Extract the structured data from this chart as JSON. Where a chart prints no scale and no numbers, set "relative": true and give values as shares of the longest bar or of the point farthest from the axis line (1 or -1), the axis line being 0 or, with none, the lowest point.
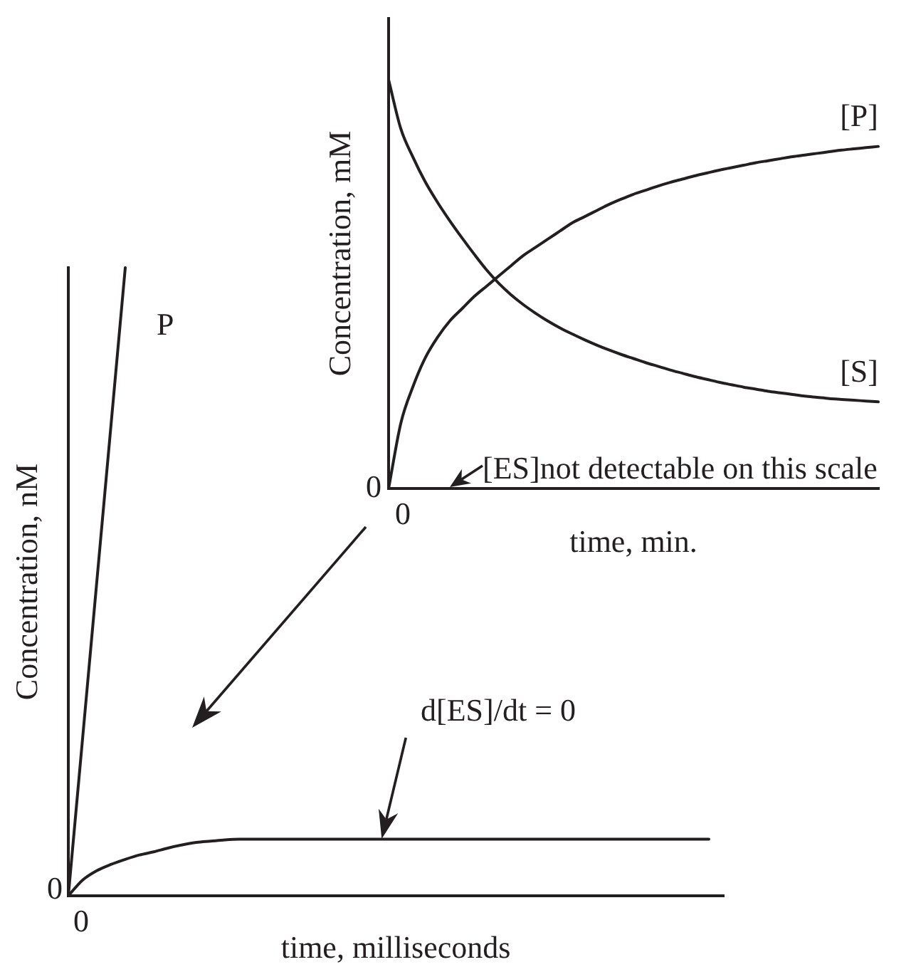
{
  "chart_data": [
    {
      "type": "line",
      "relative": true,
      "ylabel": "Concentration, mM",
      "xlabel": "time, min.",
      "categories": [
        null,
        null,
        null,
        null,
        null,
        null,
        null,
        null,
        null,
        null,
        null,
        null,
        null,
        null,
        null,
        null,
        null,
        null,
        null,
        null,
        null,
        null,
        null,
        null,
        null,
        null,
        null,
        null,
        null,
        null,
        null,
        null,
        null,
        null,
        null,
        null,
        null,
        null,
        null,
        null,
        null
      ],
      "series": [
        {
          "name": "[P]",
          "color": "#231f20",
          "values": [
            0,
            0.16,
            0.25,
            0.32,
            0.37,
            0.41,
            0.44,
            0.47,
            0.495,
            0.52,
            0.545,
            0.57,
            0.59,
            0.61,
            0.63,
            0.65,
            0.665,
            0.68,
            0.695,
            0.708,
            0.72,
            0.73,
            0.74,
            0.749,
            0.757,
            0.765,
            0.772,
            0.779,
            0.785,
            0.791,
            0.797,
            0.802,
            0.807,
            0.812,
            0.816,
            0.82,
            0.824,
            0.828,
            0.831,
            0.834,
            0.837
          ]
        },
        {
          "name": "[S]",
          "color": "#231f20",
          "values": [
            1,
            0.88,
            0.81,
            0.75,
            0.7,
            0.655,
            0.613,
            0.573,
            0.535,
            0.502,
            0.474,
            0.45,
            0.429,
            0.41,
            0.393,
            0.378,
            0.364,
            0.351,
            0.339,
            0.328,
            0.318,
            0.308,
            0.299,
            0.29,
            0.282,
            0.274,
            0.267,
            0.26,
            0.254,
            0.248,
            0.243,
            0.238,
            0.234,
            0.23,
            0.226,
            0.223,
            0.22,
            0.218,
            0.216,
            0.214,
            0.212
          ]
        }
      ],
      "annotations": [
        "0",
        "0",
        "[ES]not detectable on this scale"
      ],
      "grid": false,
      "legend": false,
      "marker": "none",
      "line_style": "solid"
    },
    {
      "type": "line",
      "relative": true,
      "ylabel": "Concentration, nM",
      "xlabel": "time, milliseconds",
      "categories": [
        null,
        null,
        null,
        null,
        null,
        null,
        null,
        null,
        null,
        null,
        null,
        null,
        null,
        null,
        null,
        null,
        null,
        null,
        null,
        null,
        null,
        null,
        null,
        null,
        null,
        null,
        null,
        null,
        null,
        null,
        null,
        null,
        null,
        null,
        null,
        null,
        null,
        null,
        null,
        null,
        null,
        null,
        null,
        null,
        null,
        null,
        null
      ],
      "series": [
        {
          "name": "P",
          "color": "#231f20",
          "values": [
            0,
            0.25,
            0.5,
            0.75,
            1,
            null,
            null,
            null,
            null,
            null,
            null,
            null,
            null,
            null,
            null,
            null,
            null,
            null,
            null,
            null,
            null,
            null,
            null,
            null,
            null,
            null,
            null,
            null,
            null,
            null,
            null,
            null,
            null,
            null,
            null,
            null,
            null,
            null,
            null,
            null,
            null,
            null,
            null,
            null,
            null,
            null,
            null
          ]
        },
        {
          "color": "#231f20",
          "values": [
            0,
            0.025,
            0.04,
            0.05,
            0.058,
            0.065,
            0.07,
            0.076,
            0.081,
            0.085,
            0.087,
            0.089,
            0.09,
            0.09,
            0.09,
            0.09,
            0.09,
            0.09,
            0.09,
            0.09,
            0.09,
            0.09,
            0.09,
            0.09,
            0.09,
            0.09,
            0.09,
            0.09,
            0.09,
            0.09,
            0.09,
            0.09,
            0.09,
            0.09,
            0.09,
            0.09,
            0.09,
            0.09,
            0.09,
            0.09,
            0.09,
            0.09,
            0.09,
            0.09,
            0.09,
            0.09,
            null
          ]
        }
      ],
      "annotations": [
        "0",
        "0",
        "d[ES]/dt = 0"
      ],
      "grid": false,
      "legend": false,
      "marker": "none",
      "line_style": "solid"
    }
  ]
}
